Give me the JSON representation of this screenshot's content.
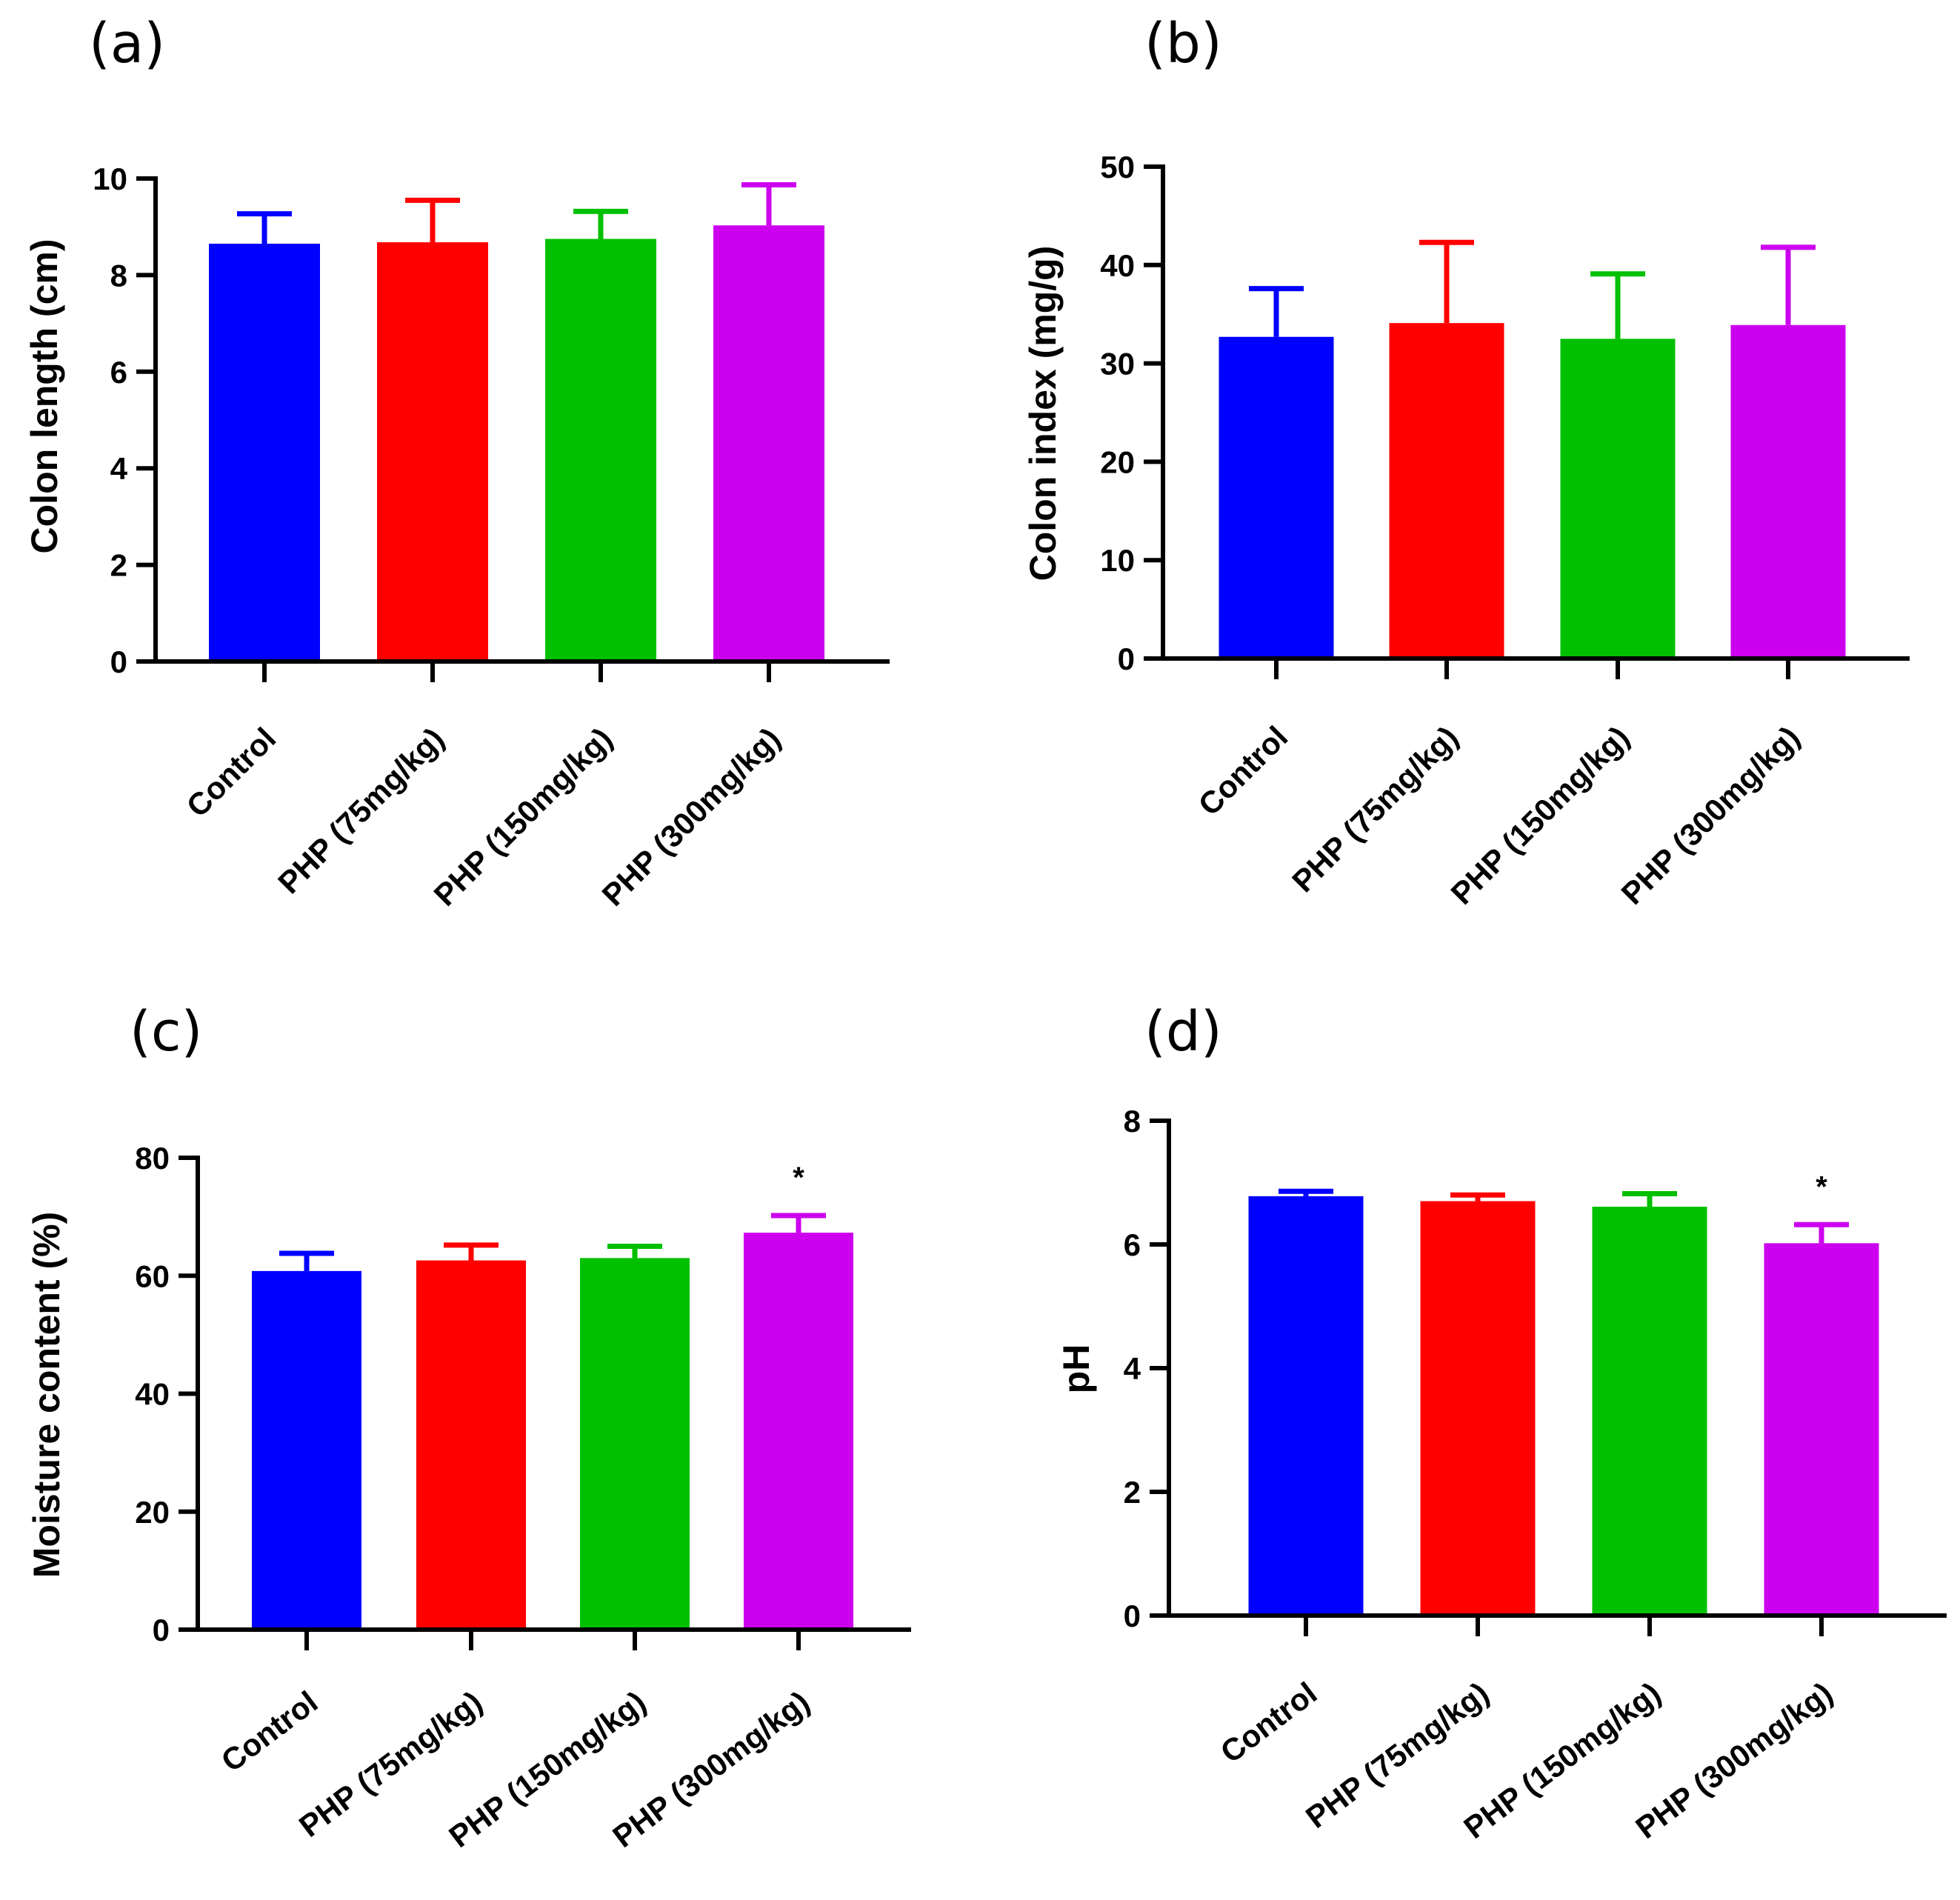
{
  "chart_data": [
    {
      "panel_label": "(a)",
      "type": "bar",
      "ylabel": "Colon length (cm)",
      "ylim": [
        0,
        10
      ],
      "yticks": [
        "0",
        "2",
        "4",
        "6",
        "8",
        "10"
      ],
      "categories": [
        "Control",
        "PHP (75mg/kg)",
        "PHP (150mg/kg)",
        "PHP (300mg/kg)"
      ],
      "values": [
        8.65,
        8.68,
        8.75,
        9.03
      ],
      "errors": [
        0.62,
        0.87,
        0.57,
        0.84
      ],
      "colors": [
        "#0000ff",
        "#ff0000",
        "#00c000",
        "#cc00ee"
      ],
      "annotations": [
        "",
        "",
        "",
        ""
      ]
    },
    {
      "panel_label": "(b)",
      "type": "bar",
      "ylabel": "Colon index (mg/g)",
      "ylim": [
        0,
        50
      ],
      "yticks": [
        "0",
        "10",
        "20",
        "30",
        "40",
        "50"
      ],
      "categories": [
        "Control",
        "PHP (75mg/kg)",
        "PHP (150mg/kg)",
        "PHP (300mg/kg)"
      ],
      "values": [
        32.7,
        34.1,
        32.5,
        33.9
      ],
      "errors": [
        4.9,
        8.2,
        6.6,
        7.9
      ],
      "colors": [
        "#0000ff",
        "#ff0000",
        "#00c000",
        "#cc00ee"
      ],
      "annotations": [
        "",
        "",
        "",
        ""
      ]
    },
    {
      "panel_label": "(c)",
      "type": "bar",
      "ylabel": "Moisture content (%)",
      "ylim": [
        0,
        80
      ],
      "yticks": [
        "0",
        "20",
        "40",
        "60",
        "80"
      ],
      "categories": [
        "Control",
        "PHP (75mg/kg)",
        "PHP (150mg/kg)",
        "PHP (300mg/kg)"
      ],
      "values": [
        60.8,
        62.6,
        63.0,
        67.3
      ],
      "errors": [
        3.0,
        2.6,
        2.0,
        2.9
      ],
      "colors": [
        "#0000ff",
        "#ff0000",
        "#00c000",
        "#cc00ee"
      ],
      "annotations": [
        "",
        "",
        "",
        "*"
      ]
    },
    {
      "panel_label": "(d)",
      "type": "bar",
      "ylabel": "pH",
      "ylim": [
        0,
        8
      ],
      "yticks": [
        "0",
        "2",
        "4",
        "6",
        "8"
      ],
      "categories": [
        "Control",
        "PHP (75mg/kg)",
        "PHP (150mg/kg)",
        "PHP (300mg/kg)"
      ],
      "values": [
        6.78,
        6.7,
        6.61,
        6.02
      ],
      "errors": [
        0.08,
        0.1,
        0.21,
        0.3
      ],
      "colors": [
        "#0000ff",
        "#ff0000",
        "#00c000",
        "#cc00ee"
      ],
      "annotations": [
        "",
        "",
        "",
        "*"
      ]
    }
  ]
}
